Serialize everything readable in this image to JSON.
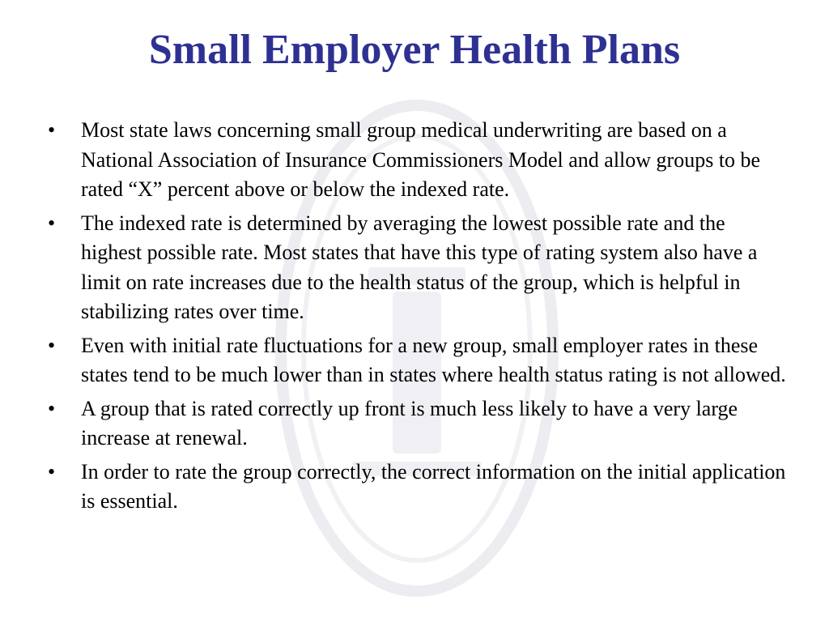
{
  "slide": {
    "title": "Small Employer Health Plans",
    "title_color": "#2e3192",
    "bullet_glyph": "•",
    "bullets": [
      "Most state laws concerning small group medical underwriting are based on a National Association of Insurance Commissioners Model and allow groups to be rated “X” percent above or below the indexed rate.",
      "The indexed rate is determined by averaging the lowest possible rate and the highest possible rate. Most states that have this type of rating system also have a limit on rate increases due to the health status of the group, which is helpful in stabilizing rates over time.",
      "Even with initial rate fluctuations for a new group, small employer rates in these states tend to be much lower than in states where health status rating is not allowed.",
      "A group that is rated correctly up front is much less likely to have a very large increase at renewal.",
      "In order to rate the group correctly, the correct information on the initial application is essential."
    ],
    "watermark": {
      "icon": "state-seal-watermark-icon",
      "color": "#ececf1"
    }
  }
}
